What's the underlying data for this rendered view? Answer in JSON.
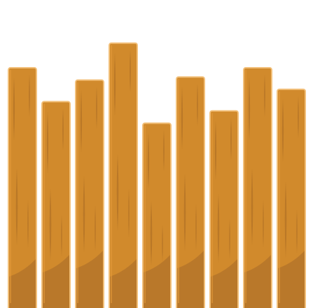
{
  "scene": {
    "background_color": "#ffffff",
    "plank_count": 9,
    "plank_heights_relative": [
      0.78,
      0.67,
      0.74,
      0.86,
      0.6,
      0.75,
      0.64,
      0.78,
      0.71
    ]
  },
  "colors": {
    "plank_fill": "#D18A2C",
    "plank_shade": "#B9782A",
    "plank_outline": "#F2C07A",
    "plank_grain": "#A86A24",
    "plank_highlight": "#E29A3A"
  },
  "icons": {
    "plank": "wood-plank-icon"
  }
}
